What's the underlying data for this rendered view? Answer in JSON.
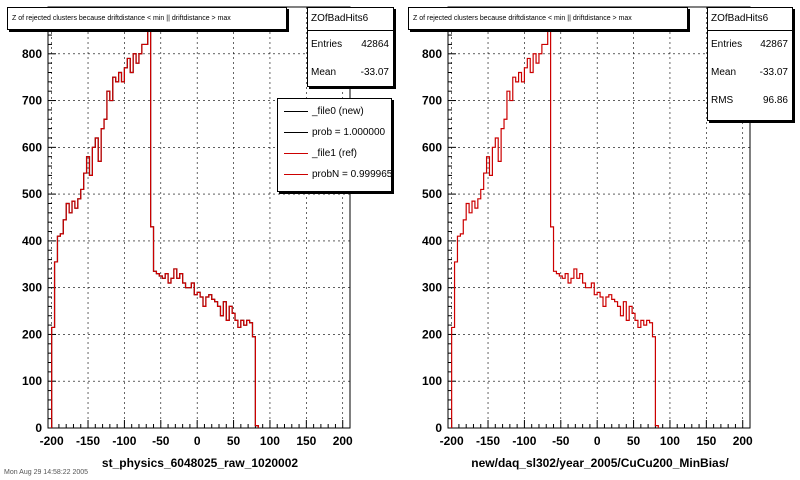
{
  "panels": [
    {
      "title": "Z of rejected clusters because driftdistance < min || driftdistance > max",
      "stats": {
        "name": "ZOfBadHits6",
        "rows": [
          {
            "label": "Entries",
            "value": "42864"
          },
          {
            "label": "Mean",
            "value": "-33.07"
          }
        ]
      },
      "legend": [
        {
          "label": "_file0 (new)",
          "color": "#000000"
        },
        {
          "label": "prob = 1.000000",
          "color": "#000000"
        },
        {
          "label": "_file1 (ref)",
          "color": "#cc0000"
        },
        {
          "label": "probN = 0.999965",
          "color": "#cc0000"
        }
      ],
      "x_title": "st_physics_6048025_raw_1020002"
    },
    {
      "title": "Z of rejected clusters because driftdistance < min || driftdistance > max",
      "stats": {
        "name": "ZOfBadHits6",
        "rows": [
          {
            "label": "Entries",
            "value": "42867"
          },
          {
            "label": "Mean",
            "value": "-33.07"
          },
          {
            "label": "RMS",
            "value": "96.86"
          }
        ]
      },
      "legend": [],
      "x_title": "new/daq_sl302/year_2005/CuCu200_MinBias/"
    }
  ],
  "footer": "Mon Aug 29 14:58:22 2005",
  "chart_data": [
    {
      "type": "line",
      "drawstyle": "steps",
      "title": "Z of rejected clusters because driftdistance < min || driftdistance > max",
      "xlabel": "st_physics_6048025_raw_1020002",
      "ylabel": "",
      "xlim": [
        -205,
        210
      ],
      "ylim": [
        0,
        900
      ],
      "grid": true,
      "legend_position": "top-right",
      "x_ticks": [
        -200,
        -150,
        -100,
        -50,
        0,
        50,
        100,
        150,
        200
      ],
      "y_ticks": [
        0,
        100,
        200,
        300,
        400,
        500,
        600,
        700,
        800
      ],
      "bin_edges_start": -200,
      "bin_width": 4,
      "series": [
        {
          "name": "_file0 (new)",
          "color": "#000000",
          "values": [
            215,
            355,
            410,
            415,
            445,
            480,
            460,
            485,
            470,
            490,
            510,
            545,
            580,
            540,
            600,
            620,
            570,
            640,
            660,
            720,
            700,
            750,
            740,
            760,
            740,
            770,
            790,
            760,
            800,
            780,
            800,
            820,
            820,
            850,
            430,
            335,
            330,
            325,
            320,
            330,
            310,
            320,
            340,
            320,
            330,
            310,
            300,
            300,
            310,
            285,
            290,
            280,
            260,
            280,
            285,
            275,
            270,
            260,
            240,
            270,
            230,
            260,
            245,
            230,
            215,
            230,
            220,
            230,
            225,
            195,
            5
          ]
        },
        {
          "name": "_file1 (ref)",
          "color": "#cc0000",
          "values": [
            215,
            355,
            410,
            415,
            445,
            480,
            460,
            485,
            470,
            490,
            510,
            545,
            580,
            540,
            600,
            620,
            570,
            640,
            660,
            720,
            700,
            750,
            740,
            760,
            740,
            770,
            790,
            760,
            800,
            780,
            800,
            820,
            820,
            850,
            430,
            335,
            330,
            325,
            320,
            330,
            310,
            320,
            340,
            320,
            330,
            310,
            300,
            300,
            310,
            285,
            290,
            280,
            260,
            280,
            285,
            275,
            270,
            260,
            240,
            270,
            230,
            260,
            245,
            230,
            215,
            230,
            220,
            230,
            225,
            195,
            5
          ]
        }
      ]
    },
    {
      "type": "line",
      "drawstyle": "steps",
      "title": "Z of rejected clusters because driftdistance < min || driftdistance > max",
      "xlabel": "new/daq_sl302/year_2005/CuCu200_MinBias/",
      "ylabel": "",
      "xlim": [
        -205,
        210
      ],
      "ylim": [
        0,
        900
      ],
      "grid": true,
      "x_ticks": [
        -200,
        -150,
        -100,
        -50,
        0,
        50,
        100,
        150,
        200
      ],
      "y_ticks": [
        0,
        100,
        200,
        300,
        400,
        500,
        600,
        700,
        800
      ],
      "bin_edges_start": -200,
      "bin_width": 4,
      "series": [
        {
          "name": "",
          "color": "#cc0000",
          "values": [
            215,
            355,
            410,
            415,
            445,
            480,
            460,
            485,
            470,
            490,
            510,
            545,
            580,
            540,
            600,
            620,
            570,
            640,
            660,
            720,
            700,
            750,
            740,
            760,
            740,
            770,
            790,
            760,
            800,
            780,
            800,
            820,
            820,
            850,
            430,
            335,
            330,
            325,
            320,
            330,
            310,
            320,
            340,
            320,
            330,
            310,
            300,
            300,
            310,
            285,
            290,
            280,
            260,
            280,
            285,
            275,
            270,
            260,
            240,
            270,
            230,
            260,
            245,
            230,
            215,
            230,
            220,
            230,
            225,
            195,
            5
          ]
        }
      ]
    }
  ]
}
